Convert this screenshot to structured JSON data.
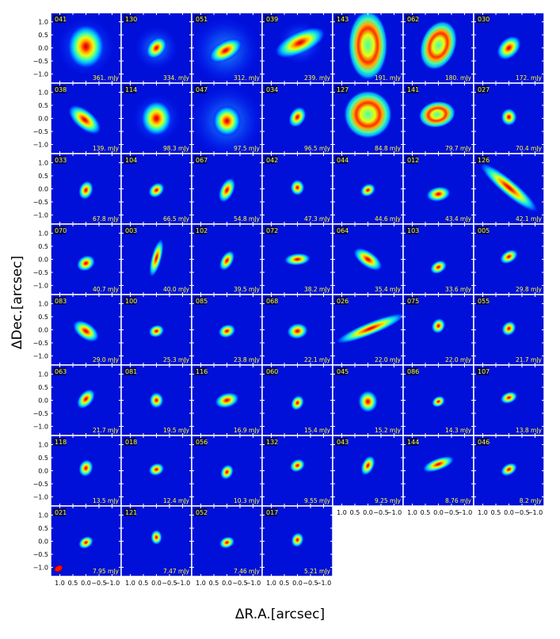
{
  "chart_data": {
    "type": "image-grid",
    "xlabel": "ΔR.A.[arcsec]",
    "ylabel": "ΔDec.[arcsec]",
    "x_ticks": [
      "1.0",
      "0.5",
      "0.0",
      "−0.5",
      "−1.0"
    ],
    "y_ticks": [
      "1.0",
      "0.5",
      "0.0",
      "−0.5",
      "−1.0"
    ],
    "xlim": [
      1.35,
      -1.35
    ],
    "ylim": [
      -1.35,
      1.35
    ],
    "colormap": "jet",
    "beam_shown_in_panel": "021",
    "panels": [
      {
        "id": "041",
        "flux": "361. mJy",
        "shape": {
          "a": 0.5,
          "b": 0.42,
          "pa": 0,
          "off": [
            0,
            0.05
          ],
          "halo": 1.2
        }
      },
      {
        "id": "130",
        "flux": "334. mJy",
        "shape": {
          "a": 0.28,
          "b": 0.2,
          "pa": 40,
          "off": [
            0,
            0.0
          ],
          "halo": 0.9
        }
      },
      {
        "id": "051",
        "flux": "312. mJy",
        "shape": {
          "a": 0.42,
          "b": 0.22,
          "pa": 60,
          "off": [
            0.05,
            -0.1
          ],
          "halo": 1.4
        }
      },
      {
        "id": "039",
        "flux": "239. mJy",
        "shape": {
          "a": 0.62,
          "b": 0.26,
          "pa": 65,
          "off": [
            -0.1,
            0.2
          ],
          "halo": 0.9
        }
      },
      {
        "id": "143",
        "flux": "191. mJy",
        "shape": {
          "a": 0.8,
          "b": 0.45,
          "pa": 0,
          "off": [
            0,
            0.1
          ],
          "ring": true
        }
      },
      {
        "id": "062",
        "flux": "180. mJy",
        "shape": {
          "a": 0.58,
          "b": 0.4,
          "pa": 20,
          "off": [
            0,
            0.1
          ],
          "ring": true
        }
      },
      {
        "id": "030",
        "flux": "172. mJy",
        "shape": {
          "a": 0.32,
          "b": 0.22,
          "pa": 45,
          "off": [
            0,
            0.0
          ]
        }
      },
      {
        "id": "038",
        "flux": "139. mJy",
        "shape": {
          "a": 0.45,
          "b": 0.22,
          "pa": -50,
          "off": [
            0.05,
            -0.05
          ]
        }
      },
      {
        "id": "114",
        "flux": "98.3 mJy",
        "shape": {
          "a": 0.4,
          "b": 0.35,
          "pa": 0,
          "off": [
            0,
            0.0
          ],
          "halo": 1.0
        }
      },
      {
        "id": "047",
        "flux": "97.5 mJy",
        "shape": {
          "a": 0.35,
          "b": 0.32,
          "pa": 0,
          "off": [
            0,
            -0.1
          ],
          "halo": 1.5
        }
      },
      {
        "id": "034",
        "flux": "96.5 mJy",
        "shape": {
          "a": 0.25,
          "b": 0.18,
          "pa": 30,
          "off": [
            0,
            0.05
          ]
        }
      },
      {
        "id": "127",
        "flux": "84.8 mJy",
        "shape": {
          "a": 0.55,
          "b": 0.55,
          "pa": 0,
          "off": [
            0,
            0.15
          ],
          "ring": true
        }
      },
      {
        "id": "141",
        "flux": "79.7 mJy",
        "shape": {
          "a": 0.42,
          "b": 0.3,
          "pa": 80,
          "off": [
            0.05,
            0.15
          ],
          "ring": true
        }
      },
      {
        "id": "027",
        "flux": "70.4 mJy",
        "shape": {
          "a": 0.2,
          "b": 0.18,
          "pa": 0,
          "off": [
            0,
            0.05
          ]
        }
      },
      {
        "id": "033",
        "flux": "67.8 mJy",
        "shape": {
          "a": 0.22,
          "b": 0.16,
          "pa": 20,
          "off": [
            0,
            -0.05
          ]
        }
      },
      {
        "id": "104",
        "flux": "66.5 mJy",
        "shape": {
          "a": 0.2,
          "b": 0.15,
          "pa": 50,
          "off": [
            0,
            -0.05
          ]
        }
      },
      {
        "id": "067",
        "flux": "54.8 mJy",
        "shape": {
          "a": 0.3,
          "b": 0.16,
          "pa": 25,
          "off": [
            0,
            -0.05
          ]
        }
      },
      {
        "id": "042",
        "flux": "47.3 mJy",
        "shape": {
          "a": 0.18,
          "b": 0.16,
          "pa": 0,
          "off": [
            0,
            0.05
          ]
        }
      },
      {
        "id": "044",
        "flux": "44.6 mJy",
        "shape": {
          "a": 0.18,
          "b": 0.14,
          "pa": 60,
          "off": [
            0,
            -0.05
          ]
        }
      },
      {
        "id": "012",
        "flux": "43.4 mJy",
        "shape": {
          "a": 0.28,
          "b": 0.17,
          "pa": 80,
          "off": [
            0,
            -0.2
          ]
        }
      },
      {
        "id": "126",
        "flux": "42.1 mJy",
        "shape": {
          "a": 0.85,
          "b": 0.18,
          "pa": -50,
          "off": [
            0,
            0.05
          ]
        }
      },
      {
        "id": "070",
        "flux": "40.7 mJy",
        "shape": {
          "a": 0.22,
          "b": 0.17,
          "pa": 60,
          "off": [
            0,
            -0.15
          ]
        }
      },
      {
        "id": "003",
        "flux": "40.0 mJy",
        "shape": {
          "a": 0.45,
          "b": 0.12,
          "pa": 15,
          "off": [
            0,
            0.05
          ]
        }
      },
      {
        "id": "102",
        "flux": "39.5 mJy",
        "shape": {
          "a": 0.25,
          "b": 0.14,
          "pa": 30,
          "off": [
            0,
            -0.05
          ]
        }
      },
      {
        "id": "072",
        "flux": "38.2 mJy",
        "shape": {
          "a": 0.3,
          "b": 0.14,
          "pa": 85,
          "off": [
            0,
            0.0
          ]
        }
      },
      {
        "id": "064",
        "flux": "35.4 mJy",
        "shape": {
          "a": 0.38,
          "b": 0.18,
          "pa": -55,
          "off": [
            0,
            0.0
          ]
        }
      },
      {
        "id": "103",
        "flux": "33.6 mJy",
        "shape": {
          "a": 0.2,
          "b": 0.14,
          "pa": 60,
          "off": [
            0,
            -0.3
          ]
        }
      },
      {
        "id": "005",
        "flux": "29.8 mJy",
        "shape": {
          "a": 0.22,
          "b": 0.14,
          "pa": 60,
          "off": [
            0,
            0.1
          ]
        }
      },
      {
        "id": "083",
        "flux": "29.0 mJy",
        "shape": {
          "a": 0.34,
          "b": 0.19,
          "pa": -55,
          "off": [
            0,
            -0.05
          ]
        }
      },
      {
        "id": "100",
        "flux": "25.3 mJy",
        "shape": {
          "a": 0.18,
          "b": 0.14,
          "pa": 70,
          "off": [
            0,
            -0.05
          ]
        }
      },
      {
        "id": "085",
        "flux": "23.8 mJy",
        "shape": {
          "a": 0.2,
          "b": 0.15,
          "pa": 70,
          "off": [
            0,
            -0.05
          ]
        }
      },
      {
        "id": "068",
        "flux": "22.1 mJy",
        "shape": {
          "a": 0.24,
          "b": 0.18,
          "pa": 80,
          "off": [
            0,
            -0.05
          ]
        }
      },
      {
        "id": "026",
        "flux": "22.0 mJy",
        "shape": {
          "a": 0.85,
          "b": 0.15,
          "pa": 68,
          "off": [
            -0.1,
            0.05
          ]
        }
      },
      {
        "id": "075",
        "flux": "22.0 mJy",
        "shape": {
          "a": 0.18,
          "b": 0.15,
          "pa": 30,
          "off": [
            0,
            0.15
          ]
        }
      },
      {
        "id": "055",
        "flux": "21.7 mJy",
        "shape": {
          "a": 0.18,
          "b": 0.15,
          "pa": 40,
          "off": [
            0,
            0.05
          ]
        }
      },
      {
        "id": "063",
        "flux": "21.7 mJy",
        "shape": {
          "a": 0.26,
          "b": 0.16,
          "pa": 40,
          "off": [
            0,
            0.05
          ]
        }
      },
      {
        "id": "081",
        "flux": "19.5 mJy",
        "shape": {
          "a": 0.18,
          "b": 0.16,
          "pa": 0,
          "off": [
            0,
            0.0
          ]
        }
      },
      {
        "id": "116",
        "flux": "16.9 mJy",
        "shape": {
          "a": 0.28,
          "b": 0.17,
          "pa": 75,
          "off": [
            0,
            0.0
          ]
        }
      },
      {
        "id": "060",
        "flux": "15.4 mJy",
        "shape": {
          "a": 0.18,
          "b": 0.14,
          "pa": 30,
          "off": [
            0,
            -0.1
          ]
        }
      },
      {
        "id": "045",
        "flux": "15.2 mJy",
        "shape": {
          "a": 0.25,
          "b": 0.22,
          "pa": 0,
          "off": [
            0,
            -0.05
          ]
        }
      },
      {
        "id": "086",
        "flux": "14.3 mJy",
        "shape": {
          "a": 0.16,
          "b": 0.12,
          "pa": 60,
          "off": [
            0,
            -0.05
          ]
        }
      },
      {
        "id": "107",
        "flux": "13.8 mJy",
        "shape": {
          "a": 0.2,
          "b": 0.13,
          "pa": 70,
          "off": [
            0,
            0.1
          ]
        }
      },
      {
        "id": "118",
        "flux": "13.5 mJy",
        "shape": {
          "a": 0.2,
          "b": 0.16,
          "pa": 20,
          "off": [
            0,
            0.1
          ]
        }
      },
      {
        "id": "018",
        "flux": "12.4 mJy",
        "shape": {
          "a": 0.18,
          "b": 0.14,
          "pa": 70,
          "off": [
            0,
            0.05
          ]
        }
      },
      {
        "id": "056",
        "flux": "10.3 mJy",
        "shape": {
          "a": 0.18,
          "b": 0.14,
          "pa": 30,
          "off": [
            0,
            -0.05
          ]
        }
      },
      {
        "id": "132",
        "flux": "9.55 mJy",
        "shape": {
          "a": 0.18,
          "b": 0.14,
          "pa": 60,
          "off": [
            0,
            0.2
          ]
        }
      },
      {
        "id": "043",
        "flux": "9.25 mJy",
        "shape": {
          "a": 0.24,
          "b": 0.14,
          "pa": 25,
          "off": [
            0,
            0.2
          ]
        }
      },
      {
        "id": "144",
        "flux": "8.76 mJy",
        "shape": {
          "a": 0.38,
          "b": 0.14,
          "pa": 70,
          "off": [
            0,
            0.25
          ]
        }
      },
      {
        "id": "046",
        "flux": "8.2  mJy",
        "shape": {
          "a": 0.2,
          "b": 0.13,
          "pa": 60,
          "off": [
            0,
            0.05
          ]
        }
      },
      {
        "id": "021",
        "flux": "7.95 mJy",
        "shape": {
          "a": 0.18,
          "b": 0.13,
          "pa": 60,
          "off": [
            0,
            -0.05
          ]
        }
      },
      {
        "id": "121",
        "flux": "7.47 mJy",
        "shape": {
          "a": 0.17,
          "b": 0.13,
          "pa": 0,
          "off": [
            0,
            0.15
          ]
        }
      },
      {
        "id": "052",
        "flux": "7.46 mJy",
        "shape": {
          "a": 0.18,
          "b": 0.13,
          "pa": 70,
          "off": [
            0,
            -0.05
          ]
        }
      },
      {
        "id": "017",
        "flux": "5.21 mJy",
        "shape": {
          "a": 0.17,
          "b": 0.14,
          "pa": 20,
          "off": [
            0,
            0.05
          ]
        }
      }
    ]
  }
}
